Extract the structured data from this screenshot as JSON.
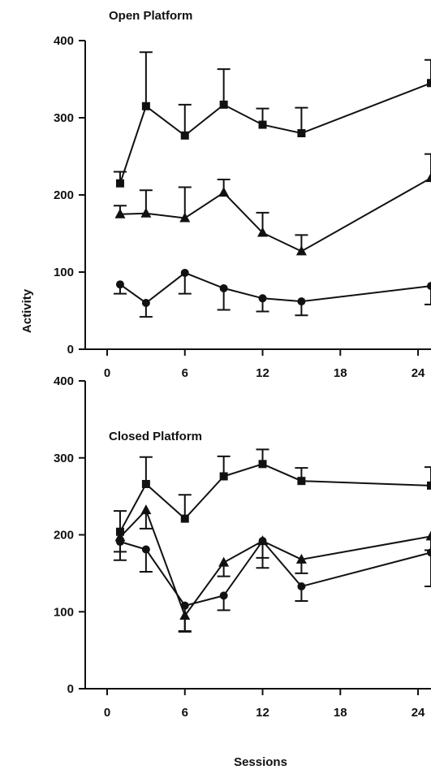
{
  "chart_data": [
    {
      "type": "line",
      "title": "Open Platform",
      "xlabel": "",
      "ylabel": "Activity",
      "xlim": [
        0,
        25
      ],
      "ylim": [
        0,
        400
      ],
      "xticks": [
        0,
        6,
        12,
        18,
        24
      ],
      "yticks": [
        0,
        100,
        200,
        300,
        400
      ],
      "x": [
        1,
        3,
        6,
        9,
        12,
        15,
        25
      ],
      "series": [
        {
          "marker": "square",
          "values": [
            215,
            315,
            277,
            317,
            291,
            280,
            345
          ],
          "err_upper": [
            230,
            385,
            317,
            363,
            312,
            313,
            375
          ]
        },
        {
          "marker": "triangle",
          "values": [
            175,
            176,
            170,
            203,
            151,
            127,
            222
          ],
          "err_upper": [
            186,
            206,
            210,
            220,
            177,
            148,
            253
          ]
        },
        {
          "marker": "circle",
          "values": [
            84,
            60,
            99,
            79,
            66,
            62,
            82
          ],
          "err_lower": [
            72,
            42,
            72,
            51,
            49,
            44,
            58
          ]
        }
      ]
    },
    {
      "type": "line",
      "title": "Closed Platform",
      "xlabel": "Sessions",
      "ylabel": "Activity",
      "xlim": [
        0,
        25
      ],
      "ylim": [
        0,
        400
      ],
      "xticks": [
        0,
        6,
        12,
        18,
        24
      ],
      "yticks": [
        0,
        100,
        200,
        300,
        400
      ],
      "x": [
        1,
        3,
        6,
        9,
        12,
        15,
        25
      ],
      "series": [
        {
          "marker": "square",
          "values": [
            204,
            266,
            221,
            276,
            292,
            270,
            264
          ],
          "err_upper": [
            231,
            301,
            252,
            302,
            311,
            287,
            288
          ]
        },
        {
          "marker": "triangle",
          "values": [
            197,
            232,
            95,
            164,
            192,
            168,
            198
          ],
          "err_lower": [
            178,
            208,
            75,
            146,
            170,
            150,
            180
          ]
        },
        {
          "marker": "circle",
          "values": [
            191,
            181,
            108,
            121,
            192,
            133,
            177
          ],
          "err_lower": [
            167,
            152,
            74,
            102,
            157,
            114,
            133
          ]
        }
      ]
    }
  ],
  "colors": {
    "ink": "#111111",
    "background": "#ffffff"
  }
}
